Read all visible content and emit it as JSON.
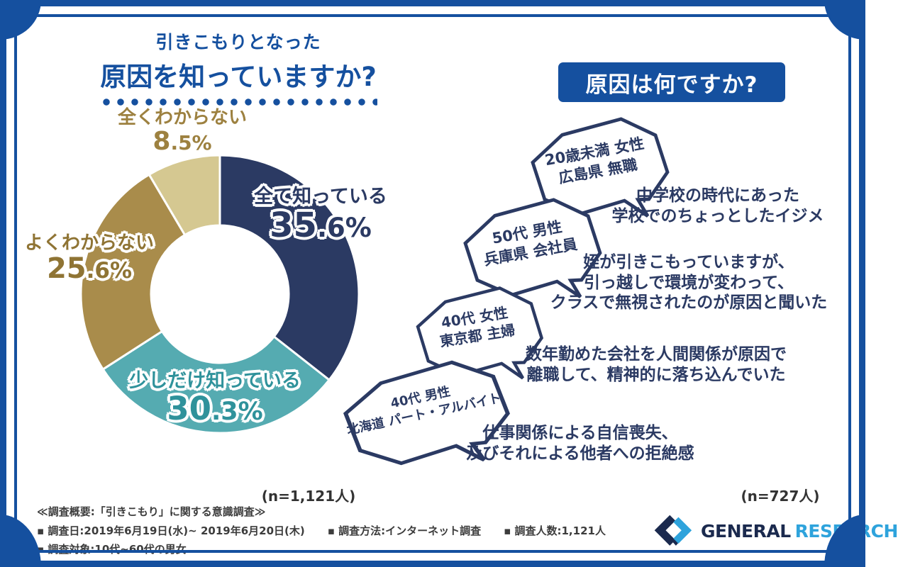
{
  "theme": {
    "frame_blue": "#15509f",
    "navy": "#2b3a63",
    "teal": "#55abb1",
    "gold": "#a98c4b",
    "beige": "#d5c891",
    "logo_navy": "#1b2a4e",
    "logo_blue": "#2ea3dc"
  },
  "left_panel": {
    "title_line1": "引きこもりとなった",
    "title_line2": "原因を知っていますか?",
    "sample_note": "(n=1,121人)"
  },
  "chart_data": {
    "type": "pie",
    "donut": true,
    "title": "引きこもりとなった原因を知っていますか?",
    "categories": [
      "全て知っている",
      "少しだけ知っている",
      "よくわからない",
      "全くわからない"
    ],
    "values": [
      35.6,
      30.3,
      25.6,
      8.5
    ],
    "unit": "%",
    "sample": "n=1,121人",
    "colors": [
      "#2b3a63",
      "#55abb1",
      "#a98c4b",
      "#d5c891"
    ],
    "start_angle": "top",
    "direction": "clockwise",
    "legend_position": "on-slices"
  },
  "right_panel": {
    "header": "原因は何ですか?",
    "sample_note": "(n=727人)",
    "testimonials": [
      {
        "who_line1": "20歳未満 女性",
        "who_line2": "広島県 無職",
        "quote_lines": [
          "中学校の時代にあった",
          "学校でのちょっとしたイジメ"
        ]
      },
      {
        "who_line1": "50代 男性",
        "who_line2": "兵庫県 会社員",
        "quote_lines": [
          "姪が引きこもっていますが、",
          "引っ越しで環境が変わって、",
          "クラスで無視されたのが原因と聞いた"
        ]
      },
      {
        "who_line1": "40代 女性",
        "who_line2": "東京都 主婦",
        "quote_lines": [
          "数年勤めた会社を人間関係が原因で",
          "離職して、精神的に落ち込んでいた"
        ]
      },
      {
        "who_line1": "40代 男性",
        "who_line2": "北海道 パート・アルバイト",
        "quote_lines": [
          "仕事関係による自信喪失、",
          "及びそれによる他者への拒絶感"
        ]
      }
    ]
  },
  "footer": {
    "overview": "≪調査概要:「引きこもり」に関する意識調査≫",
    "survey_date": "▪ 調査日:2019年6月19日(水)~ 2019年6月20日(木)",
    "survey_method": "▪ 調査方法:インターネット調査",
    "survey_count": "▪ 調査人数:1,121人",
    "survey_target": "▪ 調査対象:10代~60代の男女",
    "logo_part1": "GENERAL",
    "logo_part2": "RESEARCH"
  }
}
